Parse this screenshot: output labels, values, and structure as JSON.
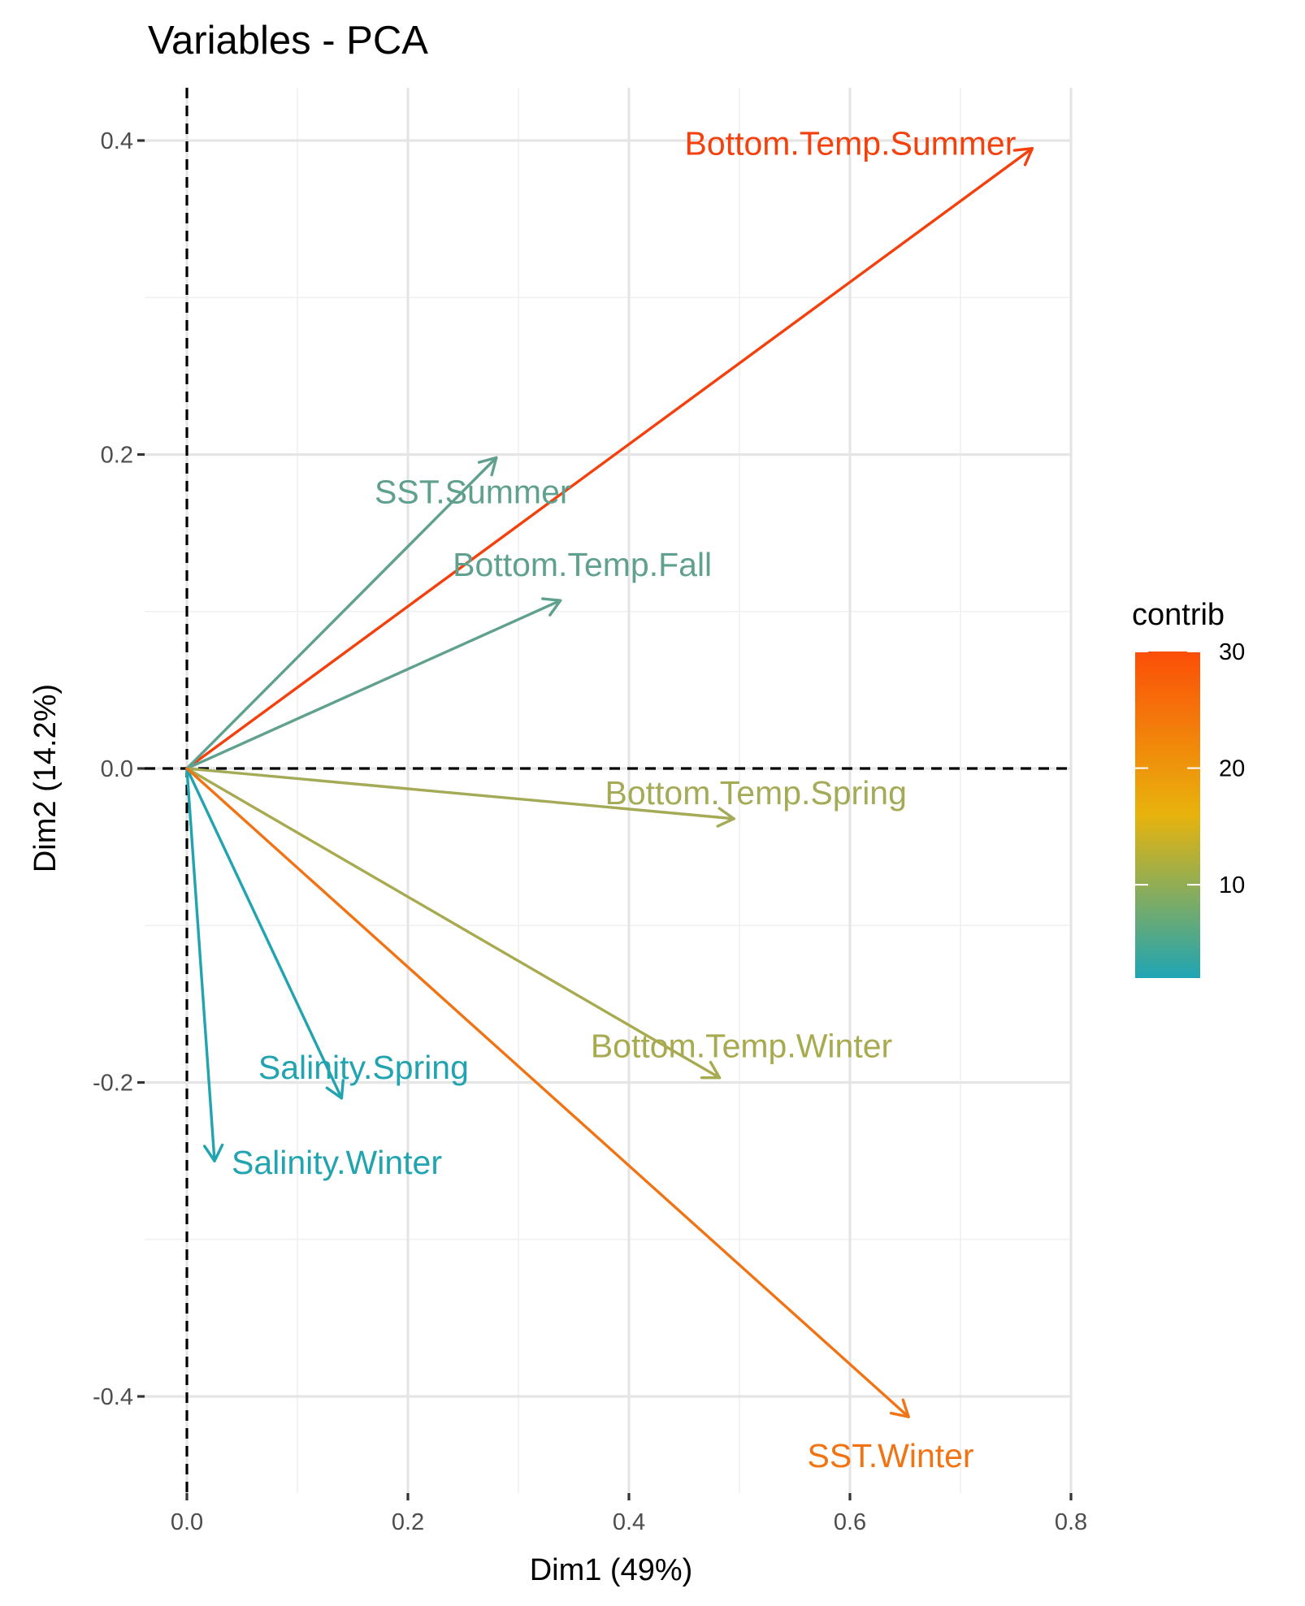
{
  "chart_data": {
    "type": "biplot-arrows",
    "title": "Variables - PCA",
    "xlabel": "Dim1 (49%)",
    "ylabel": "Dim2 (14.2%)",
    "xlim": [
      0.0,
      0.8
    ],
    "ylim": [
      -0.45,
      0.43
    ],
    "x_ticks": [
      0.0,
      0.2,
      0.4,
      0.6,
      0.8
    ],
    "x_tick_labels": [
      "0.0",
      "0.2",
      "0.4",
      "0.6",
      "0.8"
    ],
    "y_ticks": [
      -0.4,
      -0.2,
      0.0,
      0.2,
      0.4
    ],
    "y_tick_labels": [
      "-0.4",
      "-0.2",
      "0.0",
      "0.2",
      "0.4"
    ],
    "grid": true,
    "reference_lines": {
      "x": 0,
      "y": 0,
      "style": "dashed"
    },
    "variables": [
      {
        "name": "Bottom.Temp.Summer",
        "x": 0.765,
        "y": 0.395,
        "contrib": 30,
        "color": "#F4400C",
        "label_anchor": "end"
      },
      {
        "name": "SST.Summer",
        "x": 0.28,
        "y": 0.198,
        "contrib": 6.5,
        "color": "#5FA08E",
        "label_anchor": "middle"
      },
      {
        "name": "Bottom.Temp.Fall",
        "x": 0.338,
        "y": 0.107,
        "contrib": 7.5,
        "color": "#5FA08E",
        "label_anchor": "middle"
      },
      {
        "name": "Bottom.Temp.Spring",
        "x": 0.495,
        "y": -0.032,
        "contrib": 12,
        "color": "#A4AA55",
        "label_anchor": "middle"
      },
      {
        "name": "Bottom.Temp.Winter",
        "x": 0.482,
        "y": -0.197,
        "contrib": 13,
        "color": "#A8AA50",
        "label_anchor": "middle"
      },
      {
        "name": "Salinity.Spring",
        "x": 0.14,
        "y": -0.21,
        "contrib": 3,
        "color": "#21A3B0",
        "label_anchor": "middle"
      },
      {
        "name": "Salinity.Winter",
        "x": 0.025,
        "y": -0.25,
        "contrib": 2,
        "color": "#21A3B0",
        "label_anchor": "start"
      },
      {
        "name": "SST.Winter",
        "x": 0.653,
        "y": -0.413,
        "contrib": 26,
        "color": "#F07314",
        "label_anchor": "middle"
      }
    ],
    "legend": {
      "title": "contrib",
      "position": "right",
      "ticks": [
        10,
        20,
        30
      ],
      "tick_labels": [
        "10",
        "20",
        "30"
      ],
      "range": [
        2,
        30
      ],
      "gradient": [
        "#1FA5B4",
        "#E8B30C",
        "#FC4E08"
      ]
    }
  }
}
